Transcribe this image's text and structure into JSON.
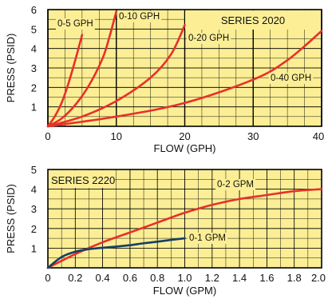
{
  "colors": {
    "plot_bg": "#fbee95",
    "grid": "#000000",
    "curve_red": "#e8302a",
    "curve_navy": "#153f66",
    "text": "#111111"
  },
  "chart_data": [
    {
      "type": "line",
      "title": "SERIES 2020",
      "xlabel": "FLOW (GPH)",
      "ylabel": "PRESS (PSID)",
      "xlim": [
        0,
        40
      ],
      "ylim": [
        0,
        6
      ],
      "x_ticks": [
        "0",
        "10",
        "20",
        "30",
        "40"
      ],
      "y_ticks": [
        "1",
        "2",
        "3",
        "4",
        "5",
        "6"
      ],
      "grid": true,
      "series": [
        {
          "name": "0-5 GPH",
          "color": "#e8302a",
          "x": [
            0,
            1,
            2,
            3,
            4,
            5
          ],
          "y": [
            0,
            0.5,
            1.2,
            2.2,
            3.4,
            4.7
          ]
        },
        {
          "name": "0-10 GPH",
          "color": "#e8302a",
          "x": [
            0,
            2,
            4,
            6,
            8,
            9,
            10
          ],
          "y": [
            0,
            0.4,
            1.1,
            2.1,
            3.5,
            4.6,
            5.9
          ]
        },
        {
          "name": "0-20 GPH",
          "color": "#e8302a",
          "x": [
            0,
            5,
            10,
            15,
            18,
            20
          ],
          "y": [
            0,
            0.5,
            1.3,
            2.5,
            3.7,
            5.2
          ]
        },
        {
          "name": "0-40 GPH",
          "color": "#e8302a",
          "x": [
            0,
            10,
            20,
            30,
            35,
            40
          ],
          "y": [
            0,
            0.5,
            1.2,
            2.4,
            3.4,
            4.9
          ]
        }
      ]
    },
    {
      "type": "line",
      "title": "SERIES 2220",
      "xlabel": "FLOW (GPM)",
      "ylabel": "PRESS (PSID)",
      "xlim": [
        0,
        2.0
      ],
      "ylim": [
        0,
        5
      ],
      "x_ticks": [
        "0",
        "0.2",
        "0.4",
        "0.6",
        "0.8",
        "1.0",
        "1.2",
        "1.4",
        "1.6",
        "1.8",
        "2.0"
      ],
      "y_ticks": [
        "1",
        "2",
        "3",
        "4",
        "5"
      ],
      "grid": true,
      "series": [
        {
          "name": "0-2 GPM",
          "color": "#e8302a",
          "x": [
            0,
            0.2,
            0.4,
            0.6,
            0.8,
            1.0,
            1.2,
            1.4,
            1.6,
            1.8,
            2.0
          ],
          "y": [
            0,
            0.7,
            1.3,
            1.8,
            2.3,
            2.8,
            3.2,
            3.5,
            3.7,
            3.9,
            4.0
          ]
        },
        {
          "name": "0-1 GPM",
          "color": "#153f66",
          "x": [
            0,
            0.1,
            0.2,
            0.3,
            0.4,
            0.5,
            0.6,
            0.7,
            0.8,
            0.9,
            1.0
          ],
          "y": [
            0,
            0.55,
            0.82,
            0.95,
            1.02,
            1.08,
            1.15,
            1.25,
            1.33,
            1.42,
            1.5
          ]
        }
      ]
    }
  ]
}
